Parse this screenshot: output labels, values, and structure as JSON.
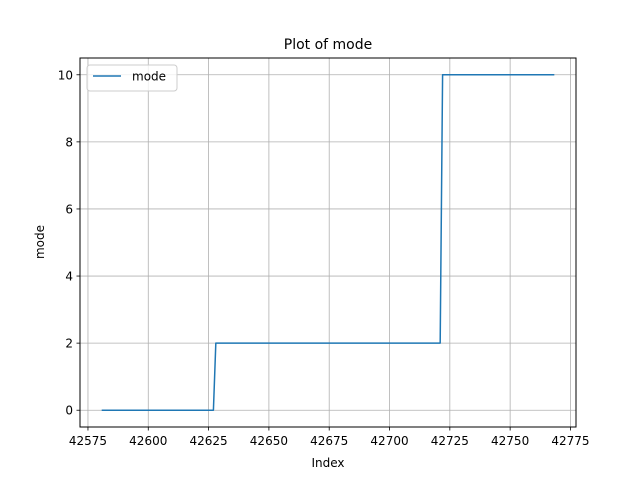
{
  "chart_data": {
    "type": "line",
    "title": "Plot of mode",
    "xlabel": "Index",
    "ylabel": "mode",
    "grid": true,
    "legend": "top-left",
    "xlim": [
      42571.7,
      42777.3
    ],
    "ylim": [
      -0.5,
      10.5
    ],
    "xticks": [
      42575,
      42600,
      42625,
      42650,
      42675,
      42700,
      42725,
      42750,
      42775
    ],
    "xtick_labels": [
      "42575",
      "42600",
      "42625",
      "42650",
      "42675",
      "42700",
      "42725",
      "42750",
      "42775"
    ],
    "yticks": [
      0,
      2,
      4,
      6,
      8,
      10
    ],
    "ytick_labels": [
      "0",
      "2",
      "4",
      "6",
      "8",
      "10"
    ],
    "series": [
      {
        "name": "mode",
        "color": "#1f77b4",
        "x": [
          42581,
          42627,
          42628,
          42721,
          42722,
          42768
        ],
        "y": [
          0,
          0,
          2,
          2,
          10,
          10
        ]
      }
    ]
  }
}
